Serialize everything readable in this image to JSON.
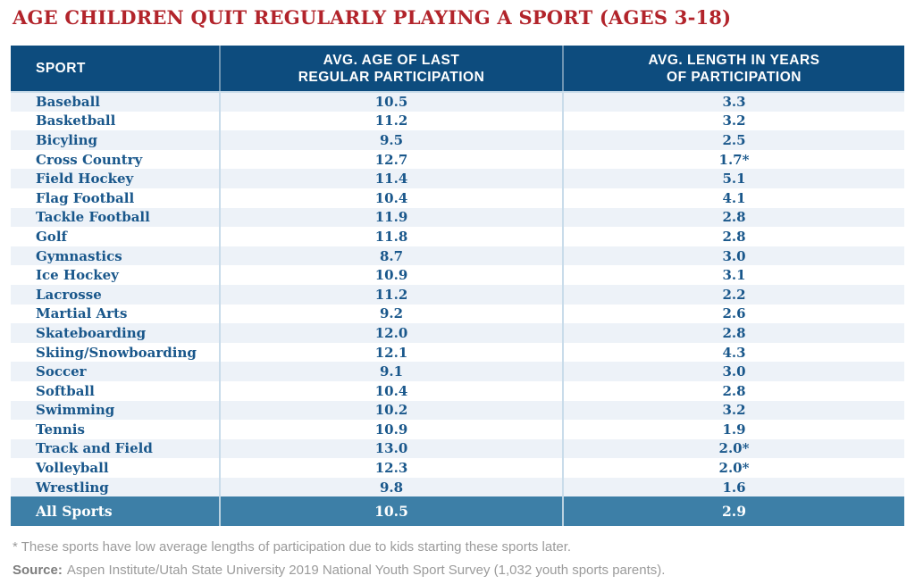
{
  "page_title": "AGE CHILDREN QUIT REGULARLY PLAYING A SPORT (AGES 3-18)",
  "chart_data": {
    "type": "table",
    "title": "AGE CHILDREN QUIT REGULARLY PLAYING A SPORT (AGES 3-18)",
    "columns": [
      "SPORT",
      "AVG. AGE OF LAST\nREGULAR PARTICIPATION",
      "AVG. LENGTH IN YEARS\nOF PARTICIPATION"
    ],
    "rows": [
      [
        "Baseball",
        "10.5",
        "3.3"
      ],
      [
        "Basketball",
        "11.2",
        "3.2"
      ],
      [
        "Bicyling",
        "9.5",
        "2.5"
      ],
      [
        "Cross Country",
        "12.7",
        "1.7*"
      ],
      [
        "Field Hockey",
        "11.4",
        "5.1"
      ],
      [
        "Flag Football",
        "10.4",
        "4.1"
      ],
      [
        "Tackle Football",
        "11.9",
        "2.8"
      ],
      [
        "Golf",
        "11.8",
        "2.8"
      ],
      [
        "Gymnastics",
        "8.7",
        "3.0"
      ],
      [
        "Ice Hockey",
        "10.9",
        "3.1"
      ],
      [
        "Lacrosse",
        "11.2",
        "2.2"
      ],
      [
        "Martial Arts",
        "9.2",
        "2.6"
      ],
      [
        "Skateboarding",
        "12.0",
        "2.8"
      ],
      [
        "Skiing/Snowboarding",
        "12.1",
        "4.3"
      ],
      [
        "Soccer",
        "9.1",
        "3.0"
      ],
      [
        "Softball",
        "10.4",
        "2.8"
      ],
      [
        "Swimming",
        "10.2",
        "3.2"
      ],
      [
        "Tennis",
        "10.9",
        "1.9"
      ],
      [
        "Track and Field",
        "13.0",
        "2.0*"
      ],
      [
        "Volleyball",
        "12.3",
        "2.0*"
      ],
      [
        "Wrestling",
        "9.8",
        "1.6"
      ]
    ],
    "summary_row": [
      "All Sports",
      "10.5",
      "2.9"
    ]
  },
  "footnotes": {
    "asterisk_note": "* These sports have low average lengths of participation due to kids starting these sports later.",
    "source_label": "Source:",
    "source_text": "Aspen Institute/Utah State University 2019 National Youth Sport Survey (1,032 youth sports parents)."
  },
  "colors": {
    "title_red": "#b2242b",
    "header_bg": "#0d4c7e",
    "summary_bg": "#3d7fa7",
    "row_alt_bg": "#edf2f8",
    "body_text_blue": "#19578b",
    "divider_blue": "#c9dcea",
    "footnote_gray": "#9b9b9b"
  }
}
